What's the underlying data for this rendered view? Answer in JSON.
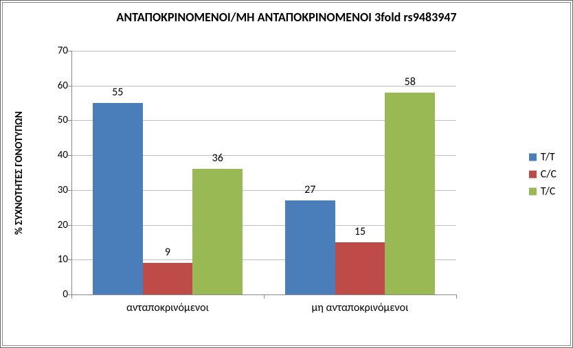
{
  "chart": {
    "type": "bar",
    "title": "ΑΝΤΑΠΟΚΡΙΝΟΜΕΝΟΙ/ΜΗ ΑΝΤΑΠΟΚΡΙΝΟΜΕΝΟΙ 3fold rs9483947",
    "title_fontsize": 18,
    "title_fontweight": "bold",
    "ylabel": "% ΣΥΧΝΟΤΗΤΕΣ ΓΟΝΟΤΥΠΩΝ",
    "ylabel_fontsize": 15,
    "ylabel_fontweight": "bold",
    "ylim": [
      0,
      70
    ],
    "ytick_step": 10,
    "yticks": [
      0,
      10,
      20,
      30,
      40,
      50,
      60,
      70
    ],
    "categories": [
      "ανταποκρινόμενοι",
      "μη ανταποκρινόμενοι"
    ],
    "series": [
      {
        "name": "T/T",
        "color": "#4a7ebb",
        "values": [
          55,
          27
        ]
      },
      {
        "name": "C/C",
        "color": "#be4b48",
        "values": [
          9,
          15
        ]
      },
      {
        "name": "T/C",
        "color": "#98b954",
        "values": [
          36,
          58
        ]
      }
    ],
    "background_color": "#ffffff",
    "grid_color": "#bfbfbf",
    "axis_color": "#888888",
    "bar_width_ratio": 0.26,
    "label_fontsize": 16,
    "tick_fontsize": 15
  }
}
